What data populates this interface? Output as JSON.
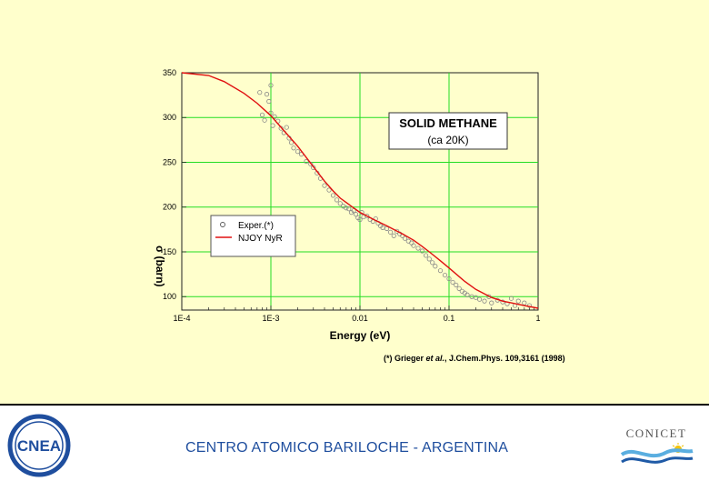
{
  "chart_data": {
    "type": "scatter",
    "x_scale": "log",
    "xlabel": "Energy (eV)",
    "ylabel": "σ (barn)",
    "xlim": [
      0.0001,
      1
    ],
    "ylim": [
      85,
      350
    ],
    "x_ticks": [
      "1E-4",
      "1E-3",
      "0.01",
      "0.1",
      "1"
    ],
    "y_ticks": [
      "100",
      "150",
      "200",
      "250",
      "300",
      "350"
    ],
    "grid": true,
    "grid_color": "#22dd22",
    "annotation": {
      "line1": "SOLID METHANE",
      "line2": "(ca 20K)"
    },
    "legend": {
      "position": "left-middle"
    },
    "citation": {
      "authors": "(*) Grieger ",
      "etal": "et al.",
      "rest": ", J.Chem.Phys. ",
      "volume": "109",
      "pages": ",3161 (1998)"
    },
    "series": [
      {
        "name": "Exper.(*)",
        "kind": "scatter",
        "marker": "open-circle",
        "color": "#888888",
        "x": [
          0.00075,
          0.0008,
          0.00085,
          0.0009,
          0.00095,
          0.001,
          0.001,
          0.00105,
          0.0011,
          0.0012,
          0.0013,
          0.0014,
          0.0015,
          0.0016,
          0.0017,
          0.0018,
          0.002,
          0.0022,
          0.0025,
          0.0028,
          0.003,
          0.0033,
          0.0036,
          0.004,
          0.0045,
          0.005,
          0.0055,
          0.006,
          0.0065,
          0.007,
          0.0075,
          0.008,
          0.0085,
          0.009,
          0.0095,
          0.01,
          0.0105,
          0.011,
          0.012,
          0.013,
          0.014,
          0.015,
          0.016,
          0.017,
          0.018,
          0.02,
          0.022,
          0.024,
          0.026,
          0.028,
          0.03,
          0.032,
          0.035,
          0.038,
          0.04,
          0.045,
          0.05,
          0.055,
          0.06,
          0.065,
          0.07,
          0.08,
          0.09,
          0.1,
          0.11,
          0.12,
          0.13,
          0.14,
          0.15,
          0.16,
          0.18,
          0.2,
          0.22,
          0.25,
          0.28,
          0.3,
          0.35,
          0.4,
          0.45,
          0.5,
          0.55,
          0.6,
          0.7,
          0.8
        ],
        "y": [
          328,
          303,
          297,
          326,
          318,
          336,
          305,
          291,
          301,
          296,
          288,
          283,
          289,
          277,
          272,
          266,
          262,
          259,
          251,
          248,
          244,
          238,
          232,
          224,
          219,
          213,
          208,
          204,
          201,
          199,
          198,
          194,
          196,
          192,
          188,
          186,
          194,
          189,
          190,
          186,
          184,
          187,
          182,
          179,
          177,
          176,
          172,
          168,
          173,
          170,
          168,
          165,
          162,
          160,
          157,
          154,
          151,
          146,
          142,
          138,
          134,
          129,
          124,
          120,
          116,
          113,
          109,
          106,
          104,
          102,
          100,
          99,
          97,
          95,
          100,
          93,
          96,
          94,
          92,
          98,
          90,
          95,
          93,
          90
        ]
      },
      {
        "name": "NJOY NyR",
        "kind": "line",
        "color": "#e01010",
        "x": [
          0.0001,
          0.0002,
          0.0003,
          0.0005,
          0.0007,
          0.001,
          0.0015,
          0.002,
          0.003,
          0.004,
          0.005,
          0.006,
          0.008,
          0.01,
          0.015,
          0.02,
          0.03,
          0.04,
          0.05,
          0.06,
          0.08,
          0.1,
          0.15,
          0.2,
          0.3,
          0.4,
          0.5,
          0.7,
          1
        ],
        "y": [
          350,
          347,
          340,
          327,
          316,
          302,
          282,
          268,
          245,
          229,
          218,
          210,
          201,
          194,
          185,
          179,
          170,
          163,
          156,
          150,
          140,
          132,
          117,
          108,
          99,
          95,
          93,
          90,
          87
        ]
      }
    ]
  },
  "footer": {
    "institution": "CENTRO ATOMICO BARILOCHE - ARGENTINA",
    "cnea_logo_text": "CNEA",
    "conicet_logo_text": "CONICET"
  }
}
